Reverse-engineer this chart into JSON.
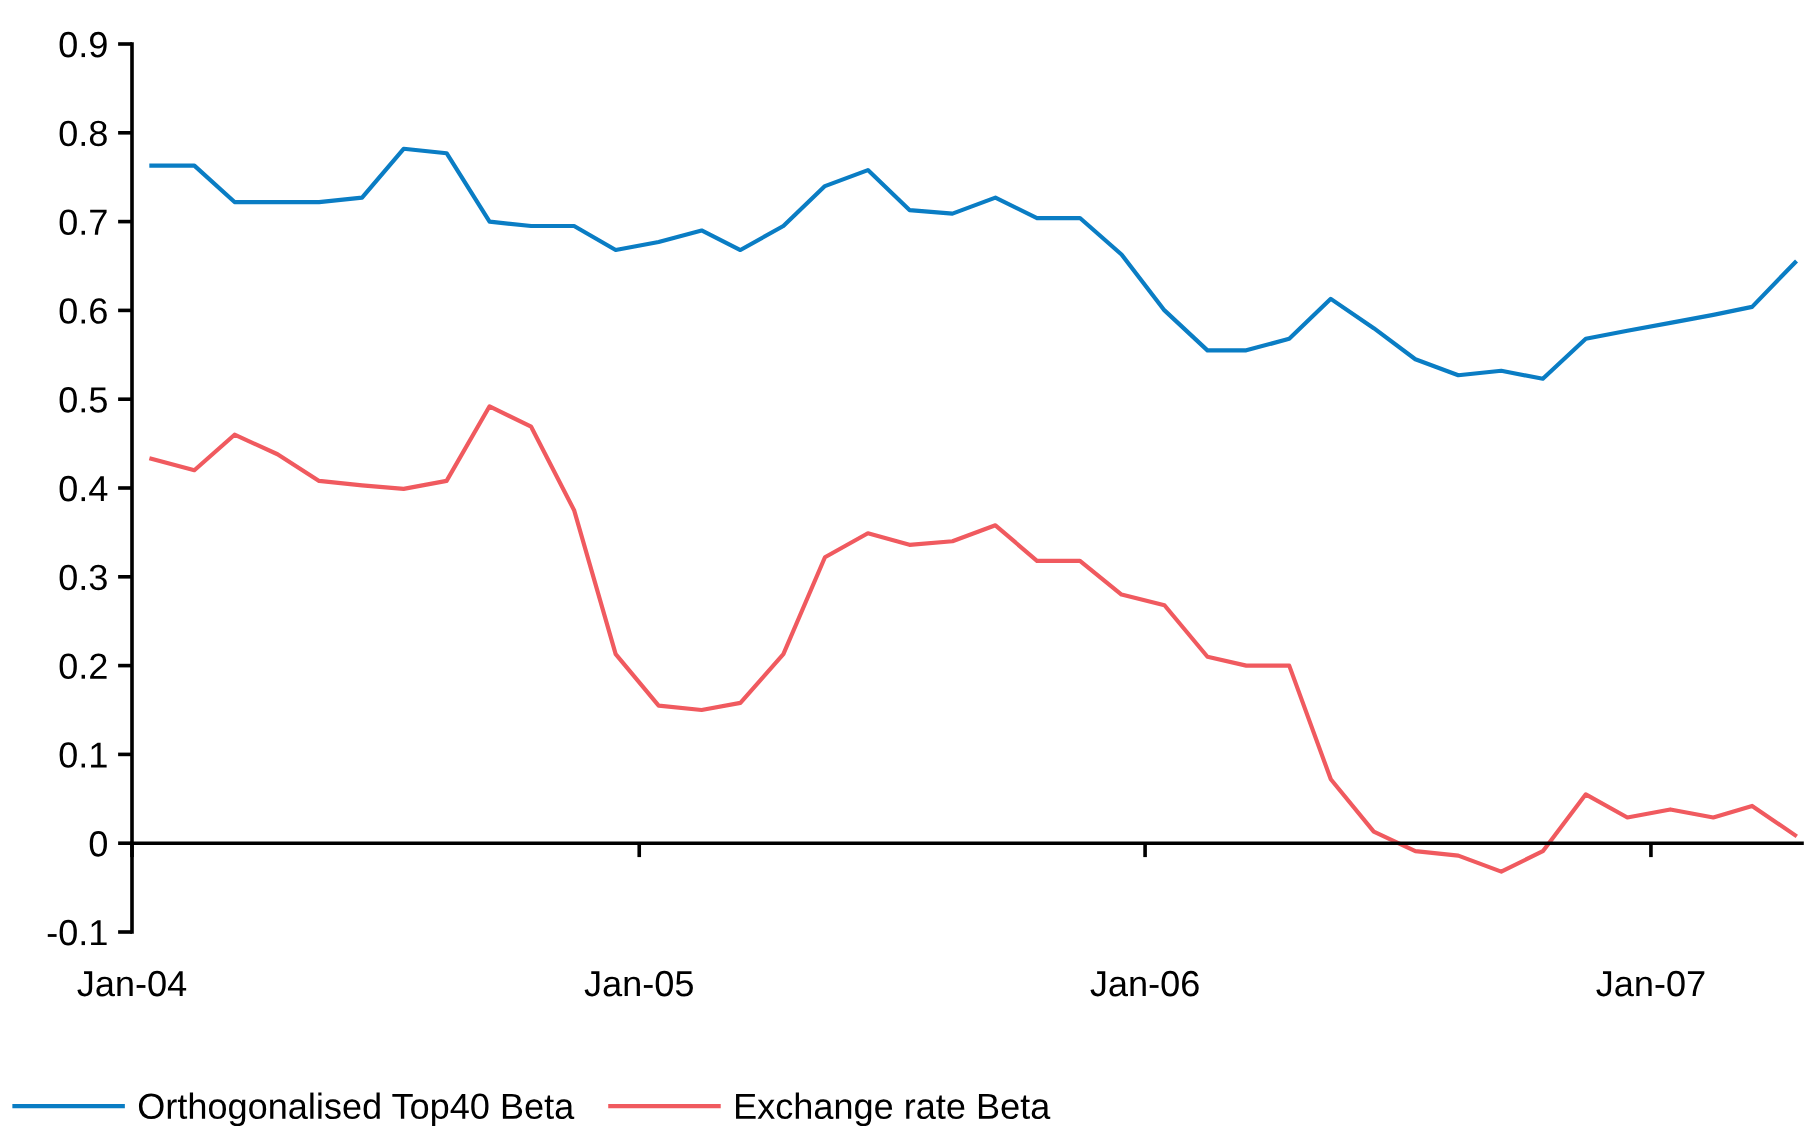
{
  "chart_data": {
    "type": "line",
    "x": [
      "2004-01-15",
      "2004-02-15",
      "2004-03-15",
      "2004-04-15",
      "2004-05-15",
      "2004-06-15",
      "2004-07-15",
      "2004-08-15",
      "2004-09-15",
      "2004-10-15",
      "2004-11-15",
      "2004-12-15",
      "2005-01-15",
      "2005-02-15",
      "2005-03-15",
      "2005-04-15",
      "2005-05-15",
      "2005-06-15",
      "2005-07-15",
      "2005-08-15",
      "2005-09-15",
      "2005-10-15",
      "2005-11-15",
      "2005-12-15",
      "2006-01-15",
      "2006-02-15",
      "2006-03-15",
      "2006-04-15",
      "2006-05-15",
      "2006-06-15",
      "2006-07-15",
      "2006-08-15",
      "2006-09-15",
      "2006-10-15",
      "2006-11-15",
      "2006-12-15",
      "2007-01-15",
      "2007-02-15",
      "2007-03-15",
      "2007-04-15"
    ],
    "series": [
      {
        "name": "Orthogonalised Top40 Beta",
        "color": "#0a7dc4",
        "values": [
          0.763,
          0.763,
          0.722,
          0.722,
          0.722,
          0.727,
          0.782,
          0.777,
          0.7,
          0.695,
          0.695,
          0.668,
          0.677,
          0.69,
          0.668,
          0.695,
          0.74,
          0.758,
          0.713,
          0.709,
          0.727,
          0.704,
          0.704,
          0.663,
          0.6,
          0.555,
          0.555,
          0.568,
          0.613,
          0.58,
          0.545,
          0.527,
          0.532,
          0.523,
          0.568,
          0.577,
          0.586,
          0.595,
          0.604,
          0.654
        ]
      },
      {
        "name": "Exchange rate Beta",
        "color": "#f05a5f",
        "values": [
          0.433,
          0.42,
          0.46,
          0.438,
          0.408,
          0.403,
          0.399,
          0.408,
          0.492,
          0.469,
          0.375,
          0.213,
          0.155,
          0.15,
          0.158,
          0.213,
          0.322,
          0.349,
          0.336,
          0.34,
          0.358,
          0.318,
          0.318,
          0.28,
          0.268,
          0.21,
          0.2,
          0.2,
          0.072,
          0.013,
          -0.009,
          -0.014,
          -0.032,
          -0.009,
          0.055,
          0.029,
          0.038,
          0.029,
          0.042,
          0.009
        ]
      }
    ],
    "xlim": [
      "2004-01-01",
      "2007-04-20"
    ],
    "xticks": [
      {
        "value": "2004-01-01",
        "label": "Jan-04"
      },
      {
        "value": "2005-01-01",
        "label": "Jan-05"
      },
      {
        "value": "2006-01-01",
        "label": "Jan-06"
      },
      {
        "value": "2007-01-01",
        "label": "Jan-07"
      }
    ],
    "ylim": [
      -0.1,
      0.9
    ],
    "yticks": [
      {
        "value": -0.1,
        "label": "-0.1"
      },
      0,
      0.1,
      0.2,
      0.3,
      0.4,
      0.5,
      0.6,
      0.7,
      0.8,
      0.9
    ],
    "legend": "bottom",
    "marker": "none",
    "line_style": "solid"
  }
}
